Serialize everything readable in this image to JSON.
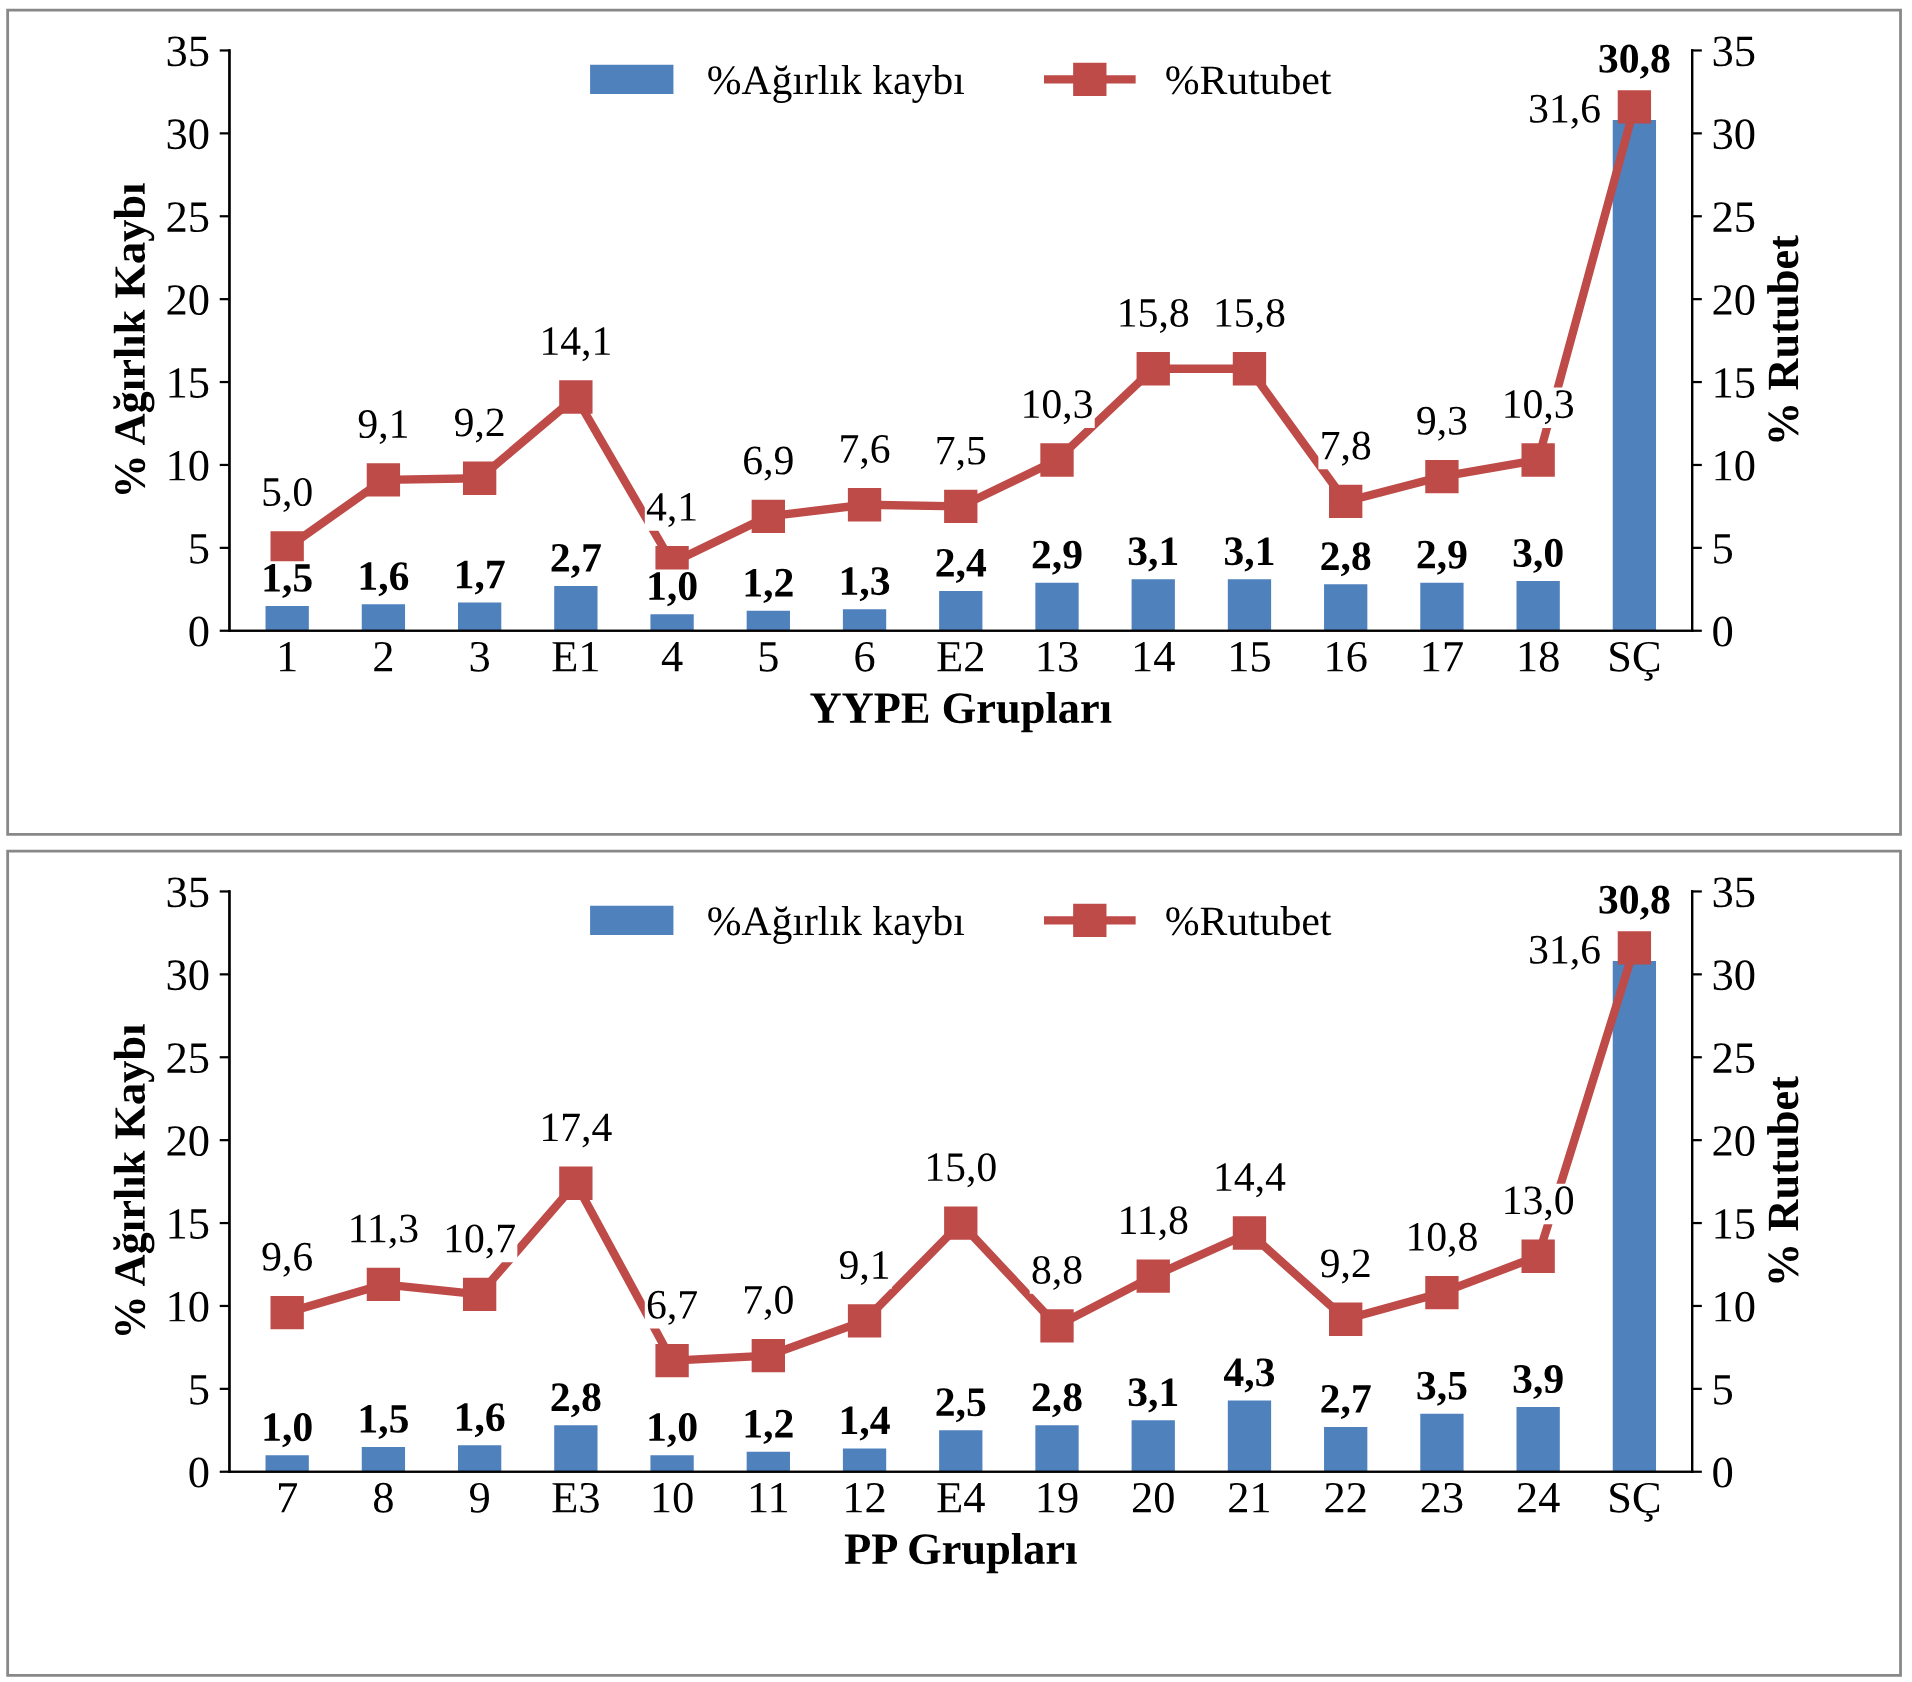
{
  "chart_data": [
    {
      "type": "bar",
      "xlabel": "YYPE Grupları",
      "ylabel": "% Ağırlık Kaybı",
      "y2label": "% Rutubet",
      "categories": [
        "1",
        "2",
        "3",
        "E1",
        "4",
        "5",
        "6",
        "E2",
        "13",
        "14",
        "15",
        "16",
        "17",
        "18",
        "SÇ"
      ],
      "series": [
        {
          "name": "%Ağırlık kaybı",
          "color": "#4f81bd",
          "values": [
            1.5,
            1.6,
            1.7,
            2.7,
            1.0,
            1.2,
            1.3,
            2.4,
            2.9,
            3.1,
            3.1,
            2.8,
            2.9,
            3.0,
            30.8
          ],
          "value_labels": [
            "1,5",
            "1,6",
            "1,7",
            "2,7",
            "1,0",
            "1,2",
            "1,3",
            "2,4",
            "2,9",
            "3,1",
            "3,1",
            "2,8",
            "2,9",
            "3,0",
            "30,8"
          ]
        },
        {
          "name": "%Rutubet",
          "type": "line",
          "axis": "y2",
          "color": "#be4b48",
          "marker": "square",
          "values": [
            5.0,
            9.1,
            9.2,
            14.1,
            4.1,
            6.9,
            7.6,
            7.5,
            10.3,
            15.8,
            15.8,
            7.8,
            9.3,
            10.3,
            31.6
          ],
          "value_labels": [
            "5,0",
            "9,1",
            "9,2",
            "14,1",
            "4,1",
            "6,9",
            "7,6",
            "7,5",
            "10,3",
            "15,8",
            "15,8",
            "7,8",
            "9,3",
            "10,3",
            "31,6"
          ]
        }
      ],
      "ylim": [
        0,
        35
      ],
      "yticks": [
        0,
        5,
        10,
        15,
        20,
        25,
        30,
        35
      ],
      "y2lim": [
        0,
        35
      ],
      "y2ticks": [
        0,
        5,
        10,
        15,
        20,
        25,
        30,
        35
      ],
      "legend": "top"
    },
    {
      "type": "bar",
      "xlabel": "PP Grupları",
      "ylabel": "% Ağırlık Kaybı",
      "y2label": "% Rutubet",
      "categories": [
        "7",
        "8",
        "9",
        "E3",
        "10",
        "11",
        "12",
        "E4",
        "19",
        "20",
        "21",
        "22",
        "23",
        "24",
        "SÇ"
      ],
      "series": [
        {
          "name": "%Ağırlık kaybı",
          "color": "#4f81bd",
          "values": [
            1.0,
            1.5,
            1.6,
            2.8,
            1.0,
            1.2,
            1.4,
            2.5,
            2.8,
            3.1,
            4.3,
            2.7,
            3.5,
            3.9,
            30.8
          ],
          "value_labels": [
            "1,0",
            "1,5",
            "1,6",
            "2,8",
            "1,0",
            "1,2",
            "1,4",
            "2,5",
            "2,8",
            "3,1",
            "4,3",
            "2,7",
            "3,5",
            "3,9",
            "30,8"
          ]
        },
        {
          "name": "%Rutubet",
          "type": "line",
          "axis": "y2",
          "color": "#be4b48",
          "marker": "square",
          "values": [
            9.6,
            11.3,
            10.7,
            17.4,
            6.7,
            7.0,
            9.1,
            15.0,
            8.8,
            11.8,
            14.4,
            9.2,
            10.8,
            13.0,
            31.6
          ],
          "value_labels": [
            "9,6",
            "11,3",
            "10,7",
            "17,4",
            "6,7",
            "7,0",
            "9,1",
            "15,0",
            "8,8",
            "11,8",
            "14,4",
            "9,2",
            "10,8",
            "13,0",
            "31,6"
          ]
        }
      ],
      "ylim": [
        0,
        35
      ],
      "yticks": [
        0,
        5,
        10,
        15,
        20,
        25,
        30,
        35
      ],
      "y2lim": [
        0,
        35
      ],
      "y2ticks": [
        0,
        5,
        10,
        15,
        20,
        25,
        30,
        35
      ],
      "legend": "top"
    }
  ]
}
